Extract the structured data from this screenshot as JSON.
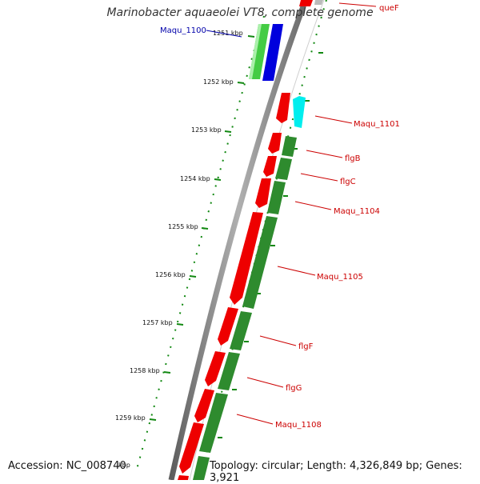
{
  "title": "Marinobacter aquaeolei VT8, complete genome",
  "footer": {
    "accession": "Accession: NC_008740",
    "topology": "Topology: circular; Length: 4,326,849 bp; Genes: 3,921"
  },
  "colors": {
    "gene_label": "#cc0000",
    "highlight_label": "#0000aa",
    "forward_gene": "#ee0000",
    "reverse_gene": "#2e8b2e",
    "cds_blue": "#0000dd",
    "cds_lightgreen": "#44cc44",
    "cds_cyan": "#00eeee",
    "backbone": "#8a8a8a",
    "tick": "#118811"
  },
  "ticks": [
    {
      "label": "1251 kbp"
    },
    {
      "label": "1252 kbp"
    },
    {
      "label": "1253 kbp"
    },
    {
      "label": "1254 kbp"
    },
    {
      "label": "1255 kbp"
    },
    {
      "label": "1256 kbp"
    },
    {
      "label": "1257 kbp"
    },
    {
      "label": "1258 kbp"
    },
    {
      "label": "1259 kbp"
    },
    {
      "label": "kbp"
    }
  ],
  "gene_labels": [
    {
      "text": "queF"
    },
    {
      "text": "Maqu_1100"
    },
    {
      "text": "Maqu_1101"
    },
    {
      "text": "flgB"
    },
    {
      "text": "flgC"
    },
    {
      "text": "Maqu_1104"
    },
    {
      "text": "Maqu_1105"
    },
    {
      "text": "flgF"
    },
    {
      "text": "flgG"
    },
    {
      "text": "Maqu_1108"
    }
  ]
}
